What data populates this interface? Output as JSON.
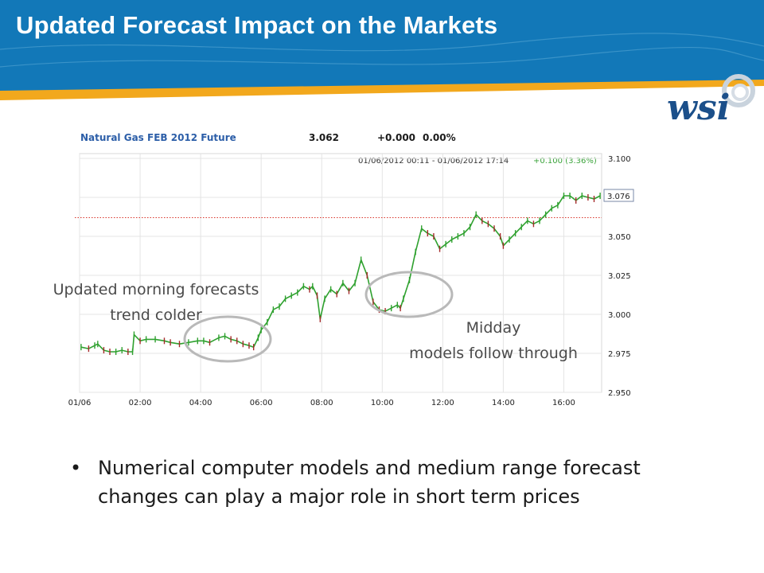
{
  "header": {
    "title": "Updated Forecast Impact on the Markets",
    "bg_color": "#1278b8",
    "accent_color": "#f2a81d"
  },
  "logo": {
    "text": "wsi",
    "color": "#1b4f8a"
  },
  "chart_data": {
    "type": "line",
    "title": "Natural Gas FEB 2012 Future",
    "last_price": "3.062",
    "change": "+0.000",
    "change_pct": "0.00%",
    "range_label": "01/06/2012 00:11 - 01/06/2012 17:14",
    "range_change": "+0.100 (3.36%)",
    "current_marker": "3.076",
    "reference_level": 3.062,
    "ylim": [
      2.95,
      3.1
    ],
    "y_ticks": [
      "3.100",
      "3.075",
      "3.050",
      "3.025",
      "3.000",
      "2.975",
      "2.950"
    ],
    "y_tick_values": [
      3.1,
      3.075,
      3.05,
      3.025,
      3.0,
      2.975,
      2.95
    ],
    "x_ticks": [
      "01/06",
      "02:00",
      "04:00",
      "06:00",
      "08:00",
      "10:00",
      "12:00",
      "14:00",
      "16:00"
    ],
    "x_tick_hours": [
      0,
      2,
      4,
      6,
      8,
      10,
      12,
      14,
      16
    ],
    "xlim_hours": [
      0,
      17.25
    ],
    "grid": true,
    "series": [
      {
        "x": [
          0.05,
          0.3,
          0.5,
          0.6,
          0.8,
          1.0,
          1.2,
          1.4,
          1.6,
          1.75,
          1.8,
          2.0,
          2.2,
          2.5,
          2.8,
          3.0,
          3.3,
          3.6,
          3.9,
          4.1,
          4.3,
          4.6,
          4.8,
          5.0,
          5.2,
          5.4,
          5.6,
          5.75,
          5.9,
          6.0,
          6.2,
          6.4,
          6.6,
          6.8,
          7.0,
          7.2,
          7.4,
          7.6,
          7.7,
          7.85,
          7.95,
          8.1,
          8.3,
          8.5,
          8.7,
          8.9,
          9.1,
          9.3,
          9.5,
          9.7,
          9.9,
          10.1,
          10.3,
          10.5,
          10.6,
          10.7,
          10.9,
          11.1,
          11.3,
          11.5,
          11.7,
          11.9,
          12.1,
          12.3,
          12.5,
          12.7,
          12.9,
          13.1,
          13.3,
          13.5,
          13.7,
          13.9,
          14.0,
          14.2,
          14.4,
          14.6,
          14.8,
          15.0,
          15.2,
          15.4,
          15.6,
          15.8,
          16.0,
          16.2,
          16.4,
          16.6,
          16.8,
          17.0,
          17.2
        ],
        "y": [
          2.979,
          2.978,
          2.98,
          2.981,
          2.977,
          2.976,
          2.976,
          2.977,
          2.976,
          2.976,
          2.987,
          2.983,
          2.984,
          2.984,
          2.983,
          2.982,
          2.981,
          2.982,
          2.983,
          2.983,
          2.982,
          2.985,
          2.986,
          2.984,
          2.983,
          2.981,
          2.98,
          2.979,
          2.985,
          2.99,
          2.995,
          3.003,
          3.005,
          3.01,
          3.012,
          3.014,
          3.018,
          3.016,
          3.018,
          3.012,
          2.997,
          3.01,
          3.016,
          3.013,
          3.02,
          3.015,
          3.02,
          3.035,
          3.025,
          3.008,
          3.003,
          3.002,
          3.004,
          3.006,
          3.004,
          3.01,
          3.022,
          3.04,
          3.055,
          3.052,
          3.05,
          3.042,
          3.045,
          3.048,
          3.05,
          3.052,
          3.056,
          3.064,
          3.06,
          3.058,
          3.055,
          3.05,
          3.044,
          3.048,
          3.052,
          3.056,
          3.06,
          3.058,
          3.06,
          3.064,
          3.068,
          3.07,
          3.076,
          3.076,
          3.073,
          3.076,
          3.075,
          3.074,
          3.076
        ]
      }
    ]
  },
  "annotations": {
    "morning": [
      "Updated morning forecasts",
      "trend colder"
    ],
    "midday": [
      "Midday",
      "models follow through"
    ]
  },
  "bullets": [
    {
      "symbol": "•",
      "text": "Numerical computer models and medium range forecast changes can play a major role in short term prices"
    }
  ]
}
